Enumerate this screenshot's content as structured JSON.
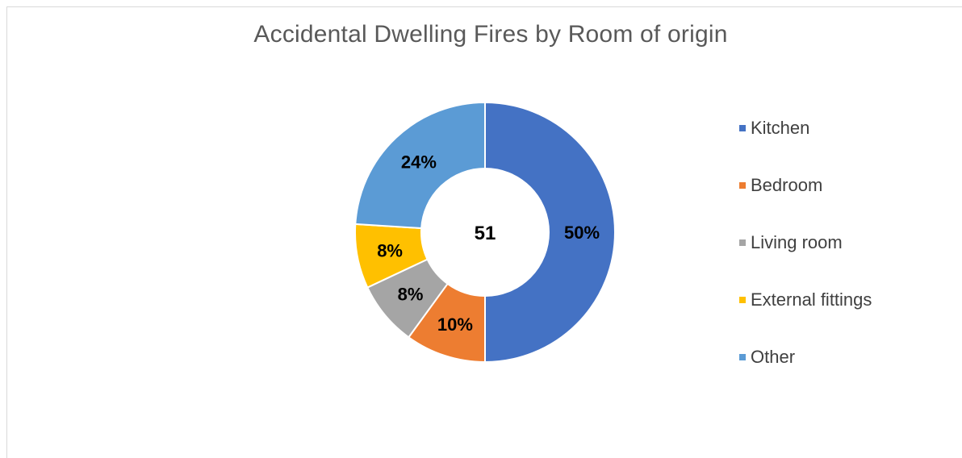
{
  "chart_data": {
    "type": "pie",
    "title": "Accidental Dwelling Fires by Room of origin",
    "center_label": "51",
    "categories": [
      "Kitchen",
      "Bedroom",
      "Living room",
      "External fittings",
      "Other"
    ],
    "values": [
      50,
      10,
      8,
      8,
      24
    ],
    "labels": [
      "50%",
      "10%",
      "8%",
      "8%",
      "24%"
    ],
    "colors": [
      "#4472C4",
      "#ED7D31",
      "#A5A5A5",
      "#FFC000",
      "#5B9BD5"
    ],
    "legend_position": "right",
    "donut": true
  }
}
